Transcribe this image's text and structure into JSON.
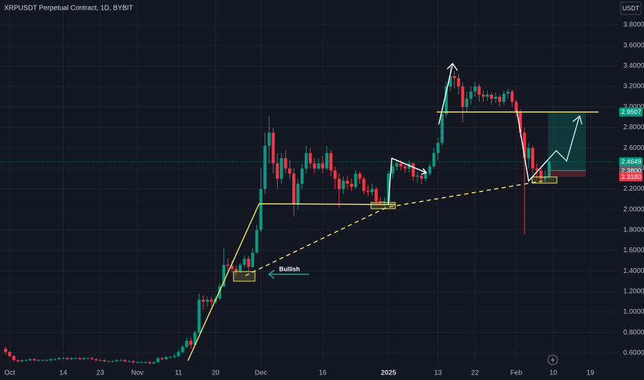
{
  "chart_data": {
    "type": "candlestick",
    "title": "XRPUSDT Perpetual Contract, 1D, BYBIT",
    "currency": "USDT",
    "annotation": "Bullish",
    "up_color": "#089981",
    "down_color": "#f23645",
    "grid": true,
    "ylim": [
      0.485,
      4.043
    ],
    "yticks": [
      {
        "value": 0.6,
        "label": "0.6000"
      },
      {
        "value": 0.8,
        "label": "0.8000"
      },
      {
        "value": 1.0,
        "label": "1.0000"
      },
      {
        "value": 1.2,
        "label": "1.2000"
      },
      {
        "value": 1.4,
        "label": "1.4000"
      },
      {
        "value": 1.6,
        "label": "1.6000"
      },
      {
        "value": 1.8,
        "label": "1.8000"
      },
      {
        "value": 2.0,
        "label": "2.0000"
      },
      {
        "value": 2.2,
        "label": "2.2000"
      },
      {
        "value": 2.4,
        "label": "2.4000"
      },
      {
        "value": 2.6,
        "label": "2.6000"
      },
      {
        "value": 2.8,
        "label": "2.8000"
      },
      {
        "value": 3.0,
        "label": "3.0000"
      },
      {
        "value": 3.2,
        "label": "3.2000"
      },
      {
        "value": 3.4,
        "label": "3.4000"
      },
      {
        "value": 3.6,
        "label": "3.6000"
      },
      {
        "value": 3.8,
        "label": "3.8000"
      }
    ],
    "position": {
      "target": 2.9507,
      "entry": {
        "value": 2.38,
        "label": "2.3800"
      },
      "stop": {
        "value": 2.318,
        "label": "2.3180"
      }
    },
    "categories": [
      null,
      "Oct",
      null,
      null,
      null,
      null,
      null,
      null,
      null,
      null,
      null,
      null,
      null,
      null,
      "14",
      null,
      null,
      null,
      null,
      null,
      null,
      null,
      null,
      "23",
      null,
      null,
      null,
      null,
      null,
      null,
      null,
      null,
      "Nov",
      null,
      null,
      null,
      null,
      null,
      null,
      null,
      null,
      null,
      "11",
      null,
      null,
      null,
      null,
      null,
      null,
      null,
      null,
      "20",
      null,
      null,
      null,
      null,
      null,
      null,
      null,
      null,
      null,
      null,
      "Dec",
      null,
      null,
      null,
      null,
      null,
      null,
      null,
      null,
      null,
      null,
      null,
      null,
      null,
      null,
      "16",
      null,
      null,
      null,
      null,
      null,
      null,
      null,
      null,
      null,
      null,
      null,
      null,
      null,
      null,
      null,
      "2025",
      null,
      null,
      null,
      null,
      null,
      null,
      null,
      null,
      null,
      null,
      null,
      "13",
      null,
      null,
      null,
      null,
      null,
      null,
      null,
      null,
      "22",
      null,
      null,
      null,
      null,
      null,
      null,
      null,
      null,
      null,
      "Feb",
      null,
      null,
      null,
      null,
      null,
      null,
      null,
      null,
      "10",
      null,
      null,
      null,
      null,
      null,
      null,
      null,
      null,
      "19",
      null,
      null,
      null,
      null,
      null,
      null
    ],
    "ohlc": [
      [
        0.64,
        0.66,
        0.59,
        0.61
      ],
      [
        0.61,
        0.62,
        0.56,
        0.57
      ],
      [
        0.57,
        0.58,
        0.52,
        0.53
      ],
      [
        0.53,
        0.54,
        0.51,
        0.52
      ],
      [
        0.52,
        0.54,
        0.51,
        0.53
      ],
      [
        0.53,
        0.54,
        0.52,
        0.53
      ],
      [
        0.53,
        0.55,
        0.52,
        0.54
      ],
      [
        0.54,
        0.55,
        0.52,
        0.53
      ],
      [
        0.53,
        0.54,
        0.52,
        0.53
      ],
      [
        0.53,
        0.54,
        0.52,
        0.53
      ],
      [
        0.53,
        0.54,
        0.52,
        0.53
      ],
      [
        0.53,
        0.55,
        0.52,
        0.54
      ],
      [
        0.54,
        0.55,
        0.53,
        0.54
      ],
      [
        0.54,
        0.56,
        0.53,
        0.55
      ],
      [
        0.55,
        0.56,
        0.54,
        0.55
      ],
      [
        0.55,
        0.56,
        0.53,
        0.54
      ],
      [
        0.54,
        0.56,
        0.53,
        0.55
      ],
      [
        0.55,
        0.56,
        0.54,
        0.55
      ],
      [
        0.55,
        0.56,
        0.53,
        0.54
      ],
      [
        0.54,
        0.56,
        0.53,
        0.55
      ],
      [
        0.55,
        0.56,
        0.54,
        0.55
      ],
      [
        0.55,
        0.56,
        0.53,
        0.54
      ],
      [
        0.54,
        0.55,
        0.52,
        0.53
      ],
      [
        0.53,
        0.54,
        0.52,
        0.53
      ],
      [
        0.53,
        0.54,
        0.51,
        0.52
      ],
      [
        0.52,
        0.53,
        0.51,
        0.52
      ],
      [
        0.52,
        0.53,
        0.51,
        0.52
      ],
      [
        0.52,
        0.54,
        0.51,
        0.53
      ],
      [
        0.53,
        0.54,
        0.52,
        0.53
      ],
      [
        0.53,
        0.54,
        0.51,
        0.52
      ],
      [
        0.52,
        0.53,
        0.51,
        0.52
      ],
      [
        0.52,
        0.53,
        0.5,
        0.51
      ],
      [
        0.51,
        0.52,
        0.5,
        0.51
      ],
      [
        0.51,
        0.52,
        0.5,
        0.51
      ],
      [
        0.51,
        0.52,
        0.5,
        0.51
      ],
      [
        0.51,
        0.52,
        0.49,
        0.5
      ],
      [
        0.5,
        0.52,
        0.49,
        0.51
      ],
      [
        0.51,
        0.56,
        0.51,
        0.55
      ],
      [
        0.55,
        0.56,
        0.53,
        0.54
      ],
      [
        0.54,
        0.57,
        0.53,
        0.56
      ],
      [
        0.56,
        0.57,
        0.55,
        0.56
      ],
      [
        0.56,
        0.59,
        0.55,
        0.57
      ],
      [
        0.57,
        0.63,
        0.56,
        0.61
      ],
      [
        0.61,
        0.68,
        0.6,
        0.66
      ],
      [
        0.66,
        0.75,
        0.65,
        0.72
      ],
      [
        0.72,
        0.75,
        0.64,
        0.68
      ],
      [
        0.68,
        0.82,
        0.67,
        0.8
      ],
      [
        0.8,
        1.18,
        0.79,
        1.12
      ],
      [
        1.12,
        1.16,
        1.02,
        1.1
      ],
      [
        1.1,
        1.15,
        1.05,
        1.12
      ],
      [
        1.12,
        1.15,
        1.06,
        1.1
      ],
      [
        1.1,
        1.16,
        1.08,
        1.13
      ],
      [
        1.13,
        1.28,
        1.12,
        1.25
      ],
      [
        1.25,
        1.63,
        1.24,
        1.46
      ],
      [
        1.46,
        1.52,
        1.4,
        1.45
      ],
      [
        1.45,
        1.5,
        1.38,
        1.42
      ],
      [
        1.42,
        1.45,
        1.35,
        1.4
      ],
      [
        1.4,
        1.48,
        1.38,
        1.46
      ],
      [
        1.46,
        1.55,
        1.43,
        1.52
      ],
      [
        1.52,
        1.55,
        1.4,
        1.44
      ],
      [
        1.44,
        1.62,
        1.43,
        1.58
      ],
      [
        1.58,
        1.85,
        1.57,
        1.8
      ],
      [
        1.8,
        2.4,
        1.78,
        2.2
      ],
      [
        2.2,
        2.75,
        2.15,
        2.62
      ],
      [
        2.62,
        2.91,
        2.45,
        2.75
      ],
      [
        2.75,
        2.8,
        2.35,
        2.45
      ],
      [
        2.45,
        2.55,
        2.2,
        2.3
      ],
      [
        2.3,
        2.55,
        2.25,
        2.5
      ],
      [
        2.5,
        2.58,
        2.35,
        2.4
      ],
      [
        2.4,
        2.48,
        2.3,
        2.35
      ],
      [
        2.35,
        2.4,
        1.93,
        2.05
      ],
      [
        2.05,
        2.3,
        2.0,
        2.25
      ],
      [
        2.25,
        2.45,
        2.2,
        2.4
      ],
      [
        2.4,
        2.62,
        2.35,
        2.55
      ],
      [
        2.55,
        2.6,
        2.4,
        2.45
      ],
      [
        2.45,
        2.5,
        2.35,
        2.4
      ],
      [
        2.4,
        2.5,
        2.38,
        2.45
      ],
      [
        2.45,
        2.52,
        2.35,
        2.4
      ],
      [
        2.4,
        2.62,
        2.38,
        2.55
      ],
      [
        2.55,
        2.58,
        2.32,
        2.38
      ],
      [
        2.38,
        2.42,
        2.2,
        2.3
      ],
      [
        2.3,
        2.35,
        2.02,
        2.2
      ],
      [
        2.2,
        2.32,
        2.15,
        2.28
      ],
      [
        2.28,
        2.33,
        2.2,
        2.25
      ],
      [
        2.25,
        2.3,
        2.18,
        2.22
      ],
      [
        2.22,
        2.38,
        2.2,
        2.35
      ],
      [
        2.35,
        2.37,
        2.25,
        2.3
      ],
      [
        2.3,
        2.32,
        2.15,
        2.18
      ],
      [
        2.18,
        2.24,
        2.13,
        2.17
      ],
      [
        2.17,
        2.25,
        2.14,
        2.2
      ],
      [
        2.2,
        2.22,
        2.05,
        2.08
      ],
      [
        2.08,
        2.12,
        2.04,
        2.07
      ],
      [
        2.07,
        2.12,
        2.03,
        2.08
      ],
      [
        2.08,
        2.38,
        2.06,
        2.35
      ],
      [
        2.35,
        2.45,
        2.3,
        2.42
      ],
      [
        2.42,
        2.48,
        2.38,
        2.45
      ],
      [
        2.45,
        2.48,
        2.38,
        2.42
      ],
      [
        2.42,
        2.44,
        2.36,
        2.4
      ],
      [
        2.4,
        2.48,
        2.36,
        2.45
      ],
      [
        2.45,
        2.46,
        2.28,
        2.32
      ],
      [
        2.32,
        2.37,
        2.26,
        2.33
      ],
      [
        2.33,
        2.35,
        2.25,
        2.3
      ],
      [
        2.3,
        2.38,
        2.27,
        2.35
      ],
      [
        2.35,
        2.45,
        2.33,
        2.42
      ],
      [
        2.42,
        2.6,
        2.4,
        2.55
      ],
      [
        2.55,
        2.7,
        2.48,
        2.65
      ],
      [
        2.65,
        2.96,
        2.62,
        2.93
      ],
      [
        2.93,
        3.25,
        2.9,
        3.2
      ],
      [
        3.2,
        3.4,
        3.15,
        3.3
      ],
      [
        3.3,
        3.35,
        3.18,
        3.28
      ],
      [
        3.28,
        3.32,
        3.12,
        3.2
      ],
      [
        3.2,
        3.24,
        2.85,
        3.0
      ],
      [
        3.0,
        3.15,
        2.95,
        3.08
      ],
      [
        3.08,
        3.2,
        3.02,
        3.15
      ],
      [
        3.15,
        3.25,
        3.1,
        3.2
      ],
      [
        3.2,
        3.22,
        3.05,
        3.12
      ],
      [
        3.12,
        3.16,
        3.05,
        3.1
      ],
      [
        3.1,
        3.16,
        3.06,
        3.12
      ],
      [
        3.12,
        3.14,
        3.02,
        3.08
      ],
      [
        3.08,
        3.14,
        3.04,
        3.1
      ],
      [
        3.1,
        3.12,
        3.0,
        3.05
      ],
      [
        3.05,
        3.16,
        3.02,
        3.13
      ],
      [
        3.13,
        3.18,
        3.08,
        3.15
      ],
      [
        3.15,
        3.17,
        3.0,
        3.05
      ],
      [
        3.05,
        3.07,
        2.9,
        2.95
      ],
      [
        2.95,
        2.98,
        2.7,
        2.75
      ],
      [
        2.75,
        2.8,
        1.76,
        2.5
      ],
      [
        2.5,
        2.65,
        2.4,
        2.6
      ],
      [
        2.6,
        2.62,
        2.35,
        2.4
      ],
      [
        2.4,
        2.45,
        2.3,
        2.38
      ],
      [
        2.38,
        2.42,
        2.25,
        2.3
      ],
      [
        2.3,
        2.38,
        2.27,
        2.32
      ],
      [
        2.32,
        2.48,
        2.3,
        2.4649
      ],
      null,
      null,
      null,
      null,
      null,
      null,
      null,
      null,
      null,
      null,
      null,
      null,
      null,
      null,
      null,
      null
    ]
  }
}
